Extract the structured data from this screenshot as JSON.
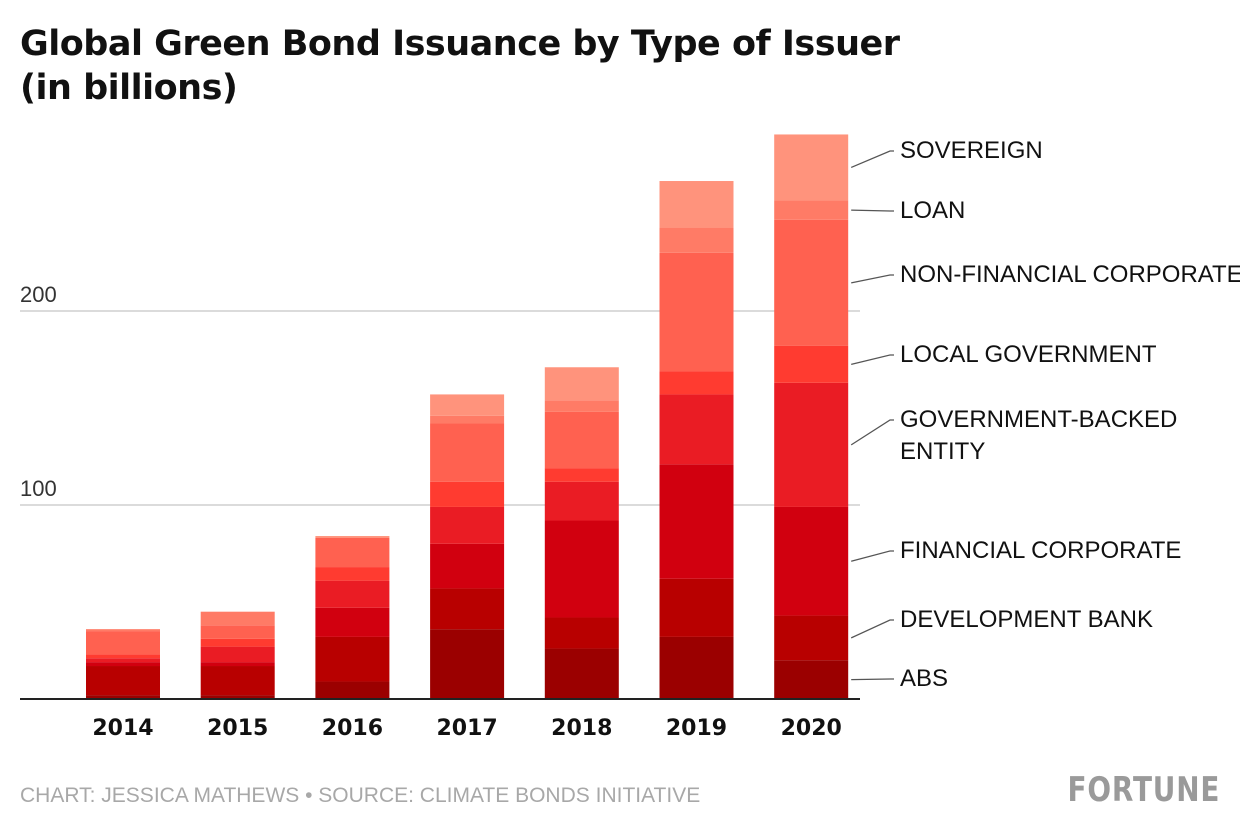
{
  "title_line1": "Global Green Bond Issuance by Type of Issuer",
  "title_line2": "(in billions)",
  "footer": {
    "credit": "CHART: JESSICA MATHEWS • SOURCE: CLIMATE BONDS INITIATIVE",
    "brand": "FORTUNE"
  },
  "chart_data": {
    "type": "bar",
    "stacked": true,
    "categories": [
      "2014",
      "2015",
      "2016",
      "2017",
      "2018",
      "2019",
      "2020"
    ],
    "ylim": [
      0,
      290
    ],
    "yticks": [
      100,
      200
    ],
    "grid": true,
    "legend": "right, labels at top bar",
    "series": [
      {
        "name": "ABS",
        "color": "#9b0000",
        "values": [
          2,
          2,
          9,
          36,
          26,
          32,
          20
        ]
      },
      {
        "name": "DEVELOPMENT BANK",
        "color": "#b80000",
        "values": [
          15,
          15,
          23,
          21,
          16,
          30,
          23
        ]
      },
      {
        "name": "FINANCIAL CORPORATE",
        "color": "#d1000f",
        "values": [
          2,
          2,
          15,
          23,
          50,
          59,
          56
        ]
      },
      {
        "name": "GOVERNMENT-BACKED ENTITY",
        "color": "#ea1c24",
        "values": [
          2,
          8,
          14,
          19,
          20,
          36,
          64
        ]
      },
      {
        "name": "LOCAL GOVERNMENT",
        "color": "#ff3b30",
        "values": [
          2,
          4,
          7,
          13,
          7,
          12,
          19
        ]
      },
      {
        "name": "NON-FINANCIAL CORPORATE",
        "color": "#ff6150",
        "values": [
          12,
          7,
          15,
          30,
          29,
          61,
          65
        ]
      },
      {
        "name": "LOAN",
        "color": "#ff7b66",
        "values": [
          1,
          7,
          0,
          4,
          6,
          13,
          10
        ]
      },
      {
        "name": "SOVEREIGN",
        "color": "#ff937c",
        "values": [
          0,
          0,
          1,
          11,
          17,
          24,
          34
        ]
      }
    ]
  }
}
